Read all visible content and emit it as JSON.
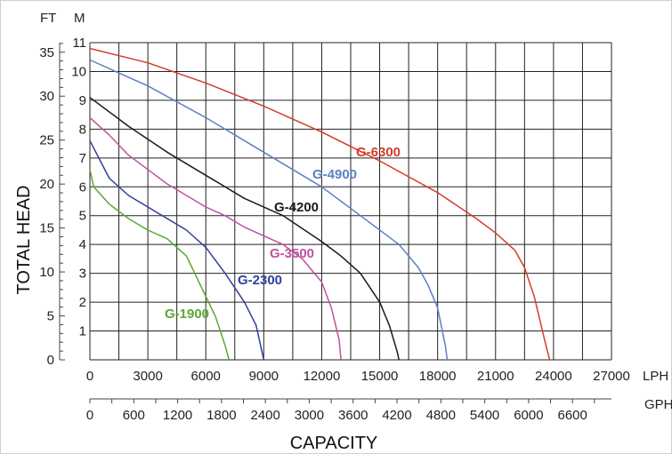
{
  "chart_data": {
    "type": "line",
    "x_primary_unit": "LPH",
    "x_secondary_unit": "GPH",
    "y_left_unit": "FT",
    "y_right_unit": "M",
    "xlabel": "CAPACITY",
    "ylabel": "TOTAL HEAD",
    "xlim": [
      0,
      27000
    ],
    "ylim_m": [
      0,
      11
    ],
    "ylim_ft": [
      0,
      36
    ],
    "grid": true,
    "x_ticks_lph": [
      0,
      3000,
      6000,
      9000,
      12000,
      15000,
      18000,
      21000,
      24000,
      27000
    ],
    "x_ticks_gph": [
      0,
      600,
      1200,
      1800,
      2400,
      3000,
      3600,
      4200,
      4800,
      5400,
      6000,
      6600
    ],
    "y_ticks_m": [
      1,
      2,
      3,
      4,
      5,
      6,
      7,
      8,
      9,
      10,
      11
    ],
    "y_ticks_ft": [
      0,
      5,
      10,
      15,
      20,
      25,
      30,
      35
    ],
    "series": [
      {
        "name": "G-1900",
        "color": "#5aa832",
        "x": [
          0,
          200,
          1000,
          2000,
          3000,
          4000,
          5000,
          6000,
          6500,
          7000,
          7200
        ],
        "y": [
          6.6,
          6.0,
          5.4,
          4.9,
          4.5,
          4.2,
          3.6,
          2.2,
          1.5,
          0.5,
          0
        ]
      },
      {
        "name": "G-2300",
        "color": "#2e3f9e",
        "x": [
          0,
          1000,
          2000,
          3000,
          4000,
          5000,
          6000,
          7000,
          8000,
          8600,
          8900,
          9000
        ],
        "y": [
          7.6,
          6.3,
          5.7,
          5.3,
          4.9,
          4.5,
          3.9,
          3.0,
          2.0,
          1.2,
          0.3,
          0
        ]
      },
      {
        "name": "G-3500",
        "color": "#c24fa0",
        "x": [
          0,
          1000,
          2000,
          3000,
          4000,
          5000,
          6000,
          7000,
          8000,
          9000,
          10000,
          11000,
          12000,
          12500,
          12900,
          13000
        ],
        "y": [
          8.4,
          7.8,
          7.1,
          6.6,
          6.1,
          5.7,
          5.3,
          5.0,
          4.6,
          4.3,
          4.0,
          3.5,
          2.7,
          1.8,
          0.7,
          0
        ]
      },
      {
        "name": "G-4200",
        "color": "#1a1a1a",
        "x": [
          0,
          2000,
          4000,
          6000,
          8000,
          10000,
          12000,
          13000,
          14000,
          15000,
          15500,
          15900,
          16000
        ],
        "y": [
          9.1,
          8.1,
          7.2,
          6.4,
          5.6,
          5.0,
          4.1,
          3.6,
          3.0,
          2.0,
          1.2,
          0.3,
          0
        ]
      },
      {
        "name": "G-4900",
        "color": "#5b80c4",
        "x": [
          0,
          3000,
          6000,
          9000,
          12000,
          14000,
          16000,
          17000,
          17500,
          18000,
          18400,
          18500
        ],
        "y": [
          10.4,
          9.5,
          8.4,
          7.2,
          6.0,
          5.0,
          4.0,
          3.2,
          2.6,
          1.8,
          0.5,
          0
        ]
      },
      {
        "name": "G-6300",
        "color": "#d63b2c",
        "x": [
          0,
          3000,
          6000,
          9000,
          12000,
          15000,
          18000,
          20000,
          21000,
          22000,
          22500,
          23000,
          23500,
          23800
        ],
        "y": [
          10.8,
          10.3,
          9.6,
          8.8,
          7.9,
          6.9,
          5.8,
          4.9,
          4.4,
          3.8,
          3.2,
          2.2,
          0.8,
          0
        ]
      }
    ]
  }
}
